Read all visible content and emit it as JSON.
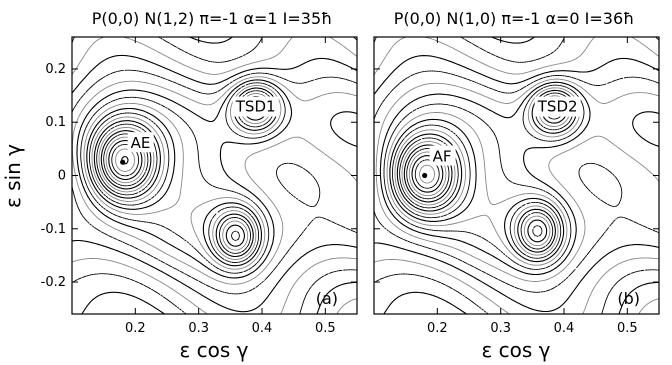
{
  "figure": {
    "xlabel": "ε  cos γ",
    "ylabel": "ε  sin γ"
  },
  "chart_data": [
    {
      "type": "contour",
      "title": "P(0,0)  N(1,2)  π=-1  α=1  I=35ħ",
      "xlabel": "ε  cos γ",
      "ylabel": "ε  sin γ",
      "xlim": [
        0.1,
        0.55
      ],
      "ylim": [
        -0.26,
        0.26
      ],
      "xticks": [
        "0.2",
        "0.3",
        "0.4",
        "0.5"
      ],
      "yticks": [
        "0.2",
        "0.1",
        "0",
        "-0.1",
        "-0.2"
      ],
      "annotations": [
        {
          "text": "AE",
          "x": 0.18,
          "y": 0.025,
          "marker": "point"
        },
        {
          "text": "TSD1",
          "x": 0.39,
          "y": 0.12
        }
      ],
      "panel_label": "(a)",
      "minima": [
        {
          "name": "AE",
          "x": 0.18,
          "y": 0.025
        },
        {
          "name": "TSD1",
          "x": 0.39,
          "y": 0.13
        },
        {
          "name": "",
          "x": 0.36,
          "y": -0.115
        }
      ]
    },
    {
      "type": "contour",
      "title": "P(0,0)  N(1,0)  π=-1  α=0  I=36ħ",
      "xlabel": "ε  cos γ",
      "ylabel": "ε  sin γ",
      "xlim": [
        0.1,
        0.55
      ],
      "ylim": [
        -0.26,
        0.26
      ],
      "xticks": [
        "0.2",
        "0.3",
        "0.4",
        "0.5"
      ],
      "yticks": [
        "0.2",
        "0.1",
        "0",
        "-0.1",
        "-0.2"
      ],
      "annotations": [
        {
          "text": "AF",
          "x": 0.18,
          "y": 0.0,
          "marker": "point"
        },
        {
          "text": "TSD2",
          "x": 0.39,
          "y": 0.12
        }
      ],
      "panel_label": "(b)",
      "minima": [
        {
          "name": "AF",
          "x": 0.18,
          "y": 0.0
        },
        {
          "name": "TSD2",
          "x": 0.385,
          "y": 0.125
        },
        {
          "name": "",
          "x": 0.36,
          "y": -0.105
        }
      ]
    }
  ]
}
